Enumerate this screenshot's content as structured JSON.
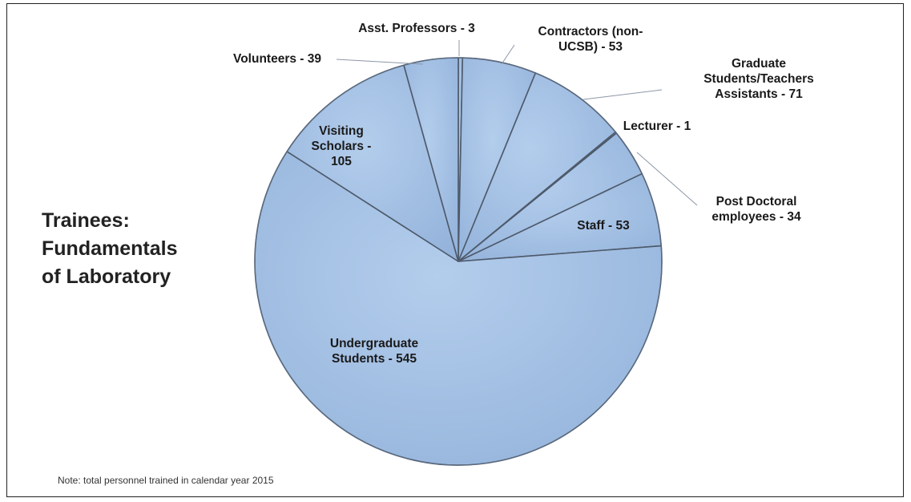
{
  "title_lines": [
    "Trainees:",
    "Fundamentals",
    "of Laboratory"
  ],
  "note": "Note: total personnel trained in calendar year 2015",
  "colors": {
    "slice_fill": "#9fbde3",
    "slice_edge": "#4e5a6b",
    "text": "#1a1a1a"
  },
  "chart_data": {
    "type": "pie",
    "title": "Trainees: Fundamentals of Laboratory",
    "slices": [
      {
        "name": "Asst. Professors",
        "value": 3,
        "label_lines": [
          "Asst. Professors - 3"
        ]
      },
      {
        "name": "Contractors (non-UCSB)",
        "value": 53,
        "label_lines": [
          "Contractors (non-",
          "UCSB) - 53"
        ]
      },
      {
        "name": "Graduate Students/Teachers Assistants",
        "value": 71,
        "label_lines": [
          "Graduate",
          "Students/Teachers",
          "Assistants - 71"
        ]
      },
      {
        "name": "Lecturer",
        "value": 1,
        "label_lines": [
          "Lecturer - 1"
        ]
      },
      {
        "name": "Post Doctoral employees",
        "value": 34,
        "label_lines": [
          "Post Doctoral",
          "employees - 34"
        ]
      },
      {
        "name": "Staff",
        "value": 53,
        "label_lines": [
          "Staff - 53"
        ]
      },
      {
        "name": "Undergraduate Students",
        "value": 545,
        "label_lines": [
          "Undergraduate",
          "Students - 545"
        ]
      },
      {
        "name": "Visiting Scholars",
        "value": 105,
        "label_lines": [
          "Visiting",
          "Scholars -",
          "105"
        ]
      },
      {
        "name": "Volunteers",
        "value": 39,
        "label_lines": [
          "Volunteers - 39"
        ]
      }
    ]
  }
}
